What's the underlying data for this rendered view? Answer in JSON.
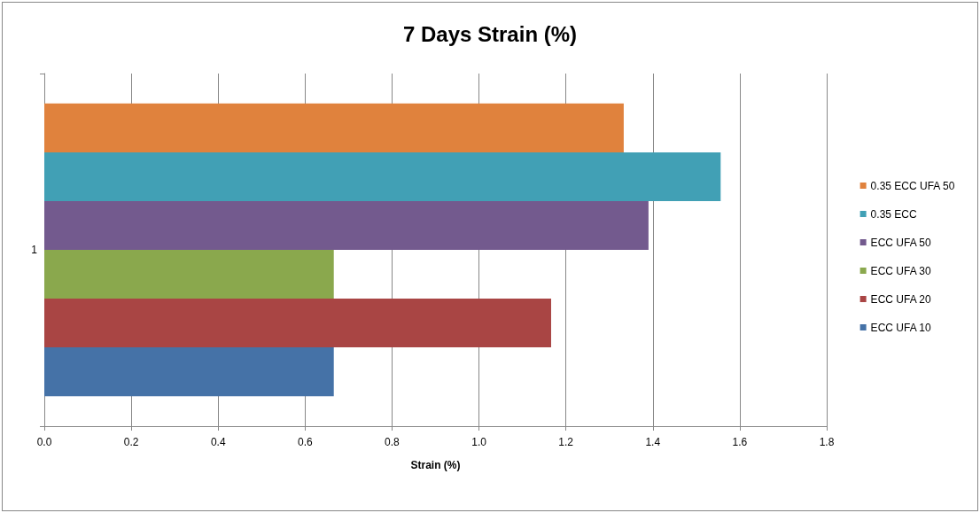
{
  "chart_data": {
    "type": "bar",
    "orientation": "horizontal",
    "title": "7 Days Strain (%)",
    "xlabel": "Strain (%)",
    "categories": [
      "1"
    ],
    "series": [
      {
        "name": "0.35 ECC UFA 50",
        "color": "#e0823d",
        "values": [
          1.333
        ]
      },
      {
        "name": "0.35 ECC",
        "color": "#41a0b5",
        "values": [
          1.556
        ]
      },
      {
        "name": "ECC UFA 50",
        "color": "#735a8e",
        "values": [
          1.39
        ]
      },
      {
        "name": "ECC UFA 30",
        "color": "#8aa84d",
        "values": [
          0.666
        ]
      },
      {
        "name": "ECC UFA 20",
        "color": "#a94544",
        "values": [
          1.166
        ]
      },
      {
        "name": "ECC UFA 10",
        "color": "#4572a7",
        "values": [
          0.666
        ]
      }
    ],
    "xlim": [
      0,
      1.8
    ],
    "xticks": [
      {
        "value": 0,
        "label": "0.0"
      },
      0.2,
      0.4,
      0.6,
      0.8,
      {
        "value": 1,
        "label": "1.0"
      },
      1.2,
      1.4,
      1.6,
      1.8
    ],
    "grid": "x",
    "legend": "right"
  }
}
